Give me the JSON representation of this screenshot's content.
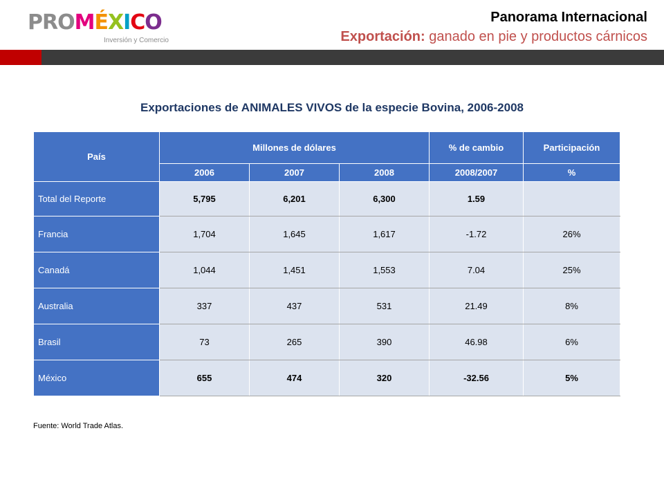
{
  "brand": {
    "pro": "PRO",
    "m": "M",
    "e": "É",
    "x": "X",
    "i": "I",
    "c": "C",
    "o": "O",
    "tagline": "Inversión y Comercio"
  },
  "header": {
    "title": "Panorama Internacional",
    "subtitle_bold": "Exportación:",
    "subtitle_rest": " ganado en pie y productos cárnicos"
  },
  "table": {
    "title": "Exportaciones de ANIMALES VIVOS de la especie Bovina, 2006-2008",
    "headers": {
      "country": "País",
      "millions": "Millones de dólares",
      "change": "% de cambio",
      "change_sub": "2008/2007",
      "share": "Participación",
      "share_sub": "%",
      "years": [
        "2006",
        "2007",
        "2008"
      ]
    },
    "rows": [
      {
        "country": "Total del Reporte",
        "v2006": "5,795",
        "v2007": "6,201",
        "v2008": "6,300",
        "change": "1.59",
        "share": ""
      },
      {
        "country": "Francia",
        "v2006": "1,704",
        "v2007": "1,645",
        "v2008": "1,617",
        "change": "-1.72",
        "share": "26%"
      },
      {
        "country": "Canadá",
        "v2006": "1,044",
        "v2007": "1,451",
        "v2008": "1,553",
        "change": "7.04",
        "share": "25%"
      },
      {
        "country": "Australia",
        "v2006": "337",
        "v2007": "437",
        "v2008": "531",
        "change": "21.49",
        "share": "8%"
      },
      {
        "country": "Brasil",
        "v2006": "73",
        "v2007": "265",
        "v2008": "390",
        "change": "46.98",
        "share": "6%"
      },
      {
        "country": "México",
        "v2006": "655",
        "v2007": "474",
        "v2008": "320",
        "change": "-32.56",
        "share": "5%"
      }
    ],
    "source": "Fuente: World Trade Atlas."
  },
  "colors": {
    "header_fill": "#4472c4",
    "cell_fill": "#dce3ef",
    "title_color": "#1f3864",
    "subtitle_color": "#c0504d",
    "bar_dark": "#3b3b3b",
    "bar_red": "#c00000"
  }
}
